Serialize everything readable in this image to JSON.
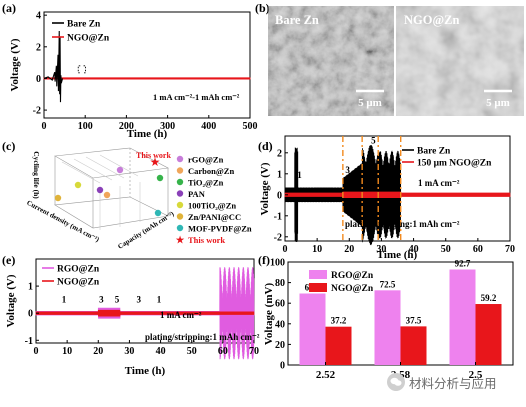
{
  "figure": {
    "watermark": "材料分析与应用",
    "panels": {
      "a": {
        "label": "(a)",
        "chart_data": {
          "type": "line",
          "xlabel": "Time (h)",
          "ylabel": "Voltage (V)",
          "xlim": [
            0,
            500
          ],
          "ylim": [
            -2.5,
            4.2
          ],
          "xticks": [
            0,
            100,
            200,
            300,
            400,
            500
          ],
          "yticks": [
            -2,
            0,
            2,
            4
          ],
          "annotation": "1 mA cm⁻²-1 mAh cm⁻²",
          "legend": "top-left",
          "series": [
            {
              "name": "Bare Zn",
              "color": "#000000",
              "x": [
                0,
                10,
                20,
                26,
                27,
                30,
                31,
                34,
                35,
                37,
                38,
                39,
                40,
                41,
                42,
                45
              ],
              "y": [
                0,
                0.1,
                -0.1,
                0.4,
                -0.2,
                0.8,
                -0.5,
                1.5,
                -0.8,
                3.0,
                -1.0,
                2.6,
                -1.5,
                0.2,
                -0.3,
                0
              ]
            },
            {
              "name": "NGO@Zn",
              "color": "#e8161b",
              "x": [
                0,
                100,
                200,
                300,
                400,
                500
              ],
              "y": [
                0,
                0,
                0,
                0,
                0,
                0
              ],
              "amplitude": 0.06
            }
          ]
        }
      },
      "b": {
        "label": "(b)",
        "left_title": "Bare Zn",
        "right_title": "NGO@Zn",
        "left_scale": "5 μm",
        "right_scale": "5 μm"
      },
      "c": {
        "label": "(c)",
        "chart_data": {
          "type": "scatter",
          "projection": "3d",
          "xlabel": "Current density (mA cm⁻²)",
          "ylabel": "Capacity (mAh cm⁻²)",
          "zlabel": "Cycling life (h)",
          "annotation": "This work",
          "legend": "right",
          "points": [
            {
              "name": "rGO@Zn",
              "color": "#c77dd9",
              "shape": "circle"
            },
            {
              "name": "Carbon@Zn",
              "color": "#f0a65a",
              "shape": "circle"
            },
            {
              "name": "TiO₂@Zn",
              "color": "#36b34a",
              "shape": "circle"
            },
            {
              "name": "PAN",
              "color": "#8a40b8",
              "shape": "circle"
            },
            {
              "name": "100TiO₂@Zn",
              "color": "#d7d93a",
              "shape": "circle"
            },
            {
              "name": "Zn/PANI@CC",
              "color": "#e0b33a",
              "shape": "circle"
            },
            {
              "name": "MOF-PVDF@Zn",
              "color": "#2fb7b5",
              "shape": "circle"
            },
            {
              "name": "This work",
              "color": "#e8161b",
              "shape": "star"
            }
          ]
        }
      },
      "d": {
        "label": "(d)",
        "chart_data": {
          "type": "line",
          "xlabel": "Time (h)",
          "ylabel": "Voltage (V)",
          "xlim": [
            0,
            70
          ],
          "ylim": [
            -2.2,
            2.8
          ],
          "xticks": [
            0,
            10,
            20,
            30,
            40,
            50,
            60,
            70
          ],
          "yticks": [
            -2,
            -1,
            0,
            1,
            2
          ],
          "annotations": [
            "1 mA cm⁻²",
            "plating/stripping:1 mAh cm⁻²"
          ],
          "stage_labels": [
            {
              "text": "1",
              "x": 4.5
            },
            {
              "text": "3",
              "x": 19.5
            },
            {
              "text": "5",
              "x": 27.5
            },
            {
              "text": "3",
              "x": 35.0
            }
          ],
          "dashed_lines_x": [
            18,
            24,
            29,
            36
          ],
          "legend": "top-right",
          "series": [
            {
              "name": "Bare Zn",
              "color": "#000000"
            },
            {
              "name": "150 μm NGO@Zn",
              "color": "#e8161b"
            }
          ]
        }
      },
      "e": {
        "label": "(e)",
        "chart_data": {
          "type": "line",
          "xlabel": "Time (h)",
          "ylabel": "Voltage (V)",
          "xlim": [
            0,
            70
          ],
          "ylim": [
            -1.1,
            2.0
          ],
          "xticks": [
            0,
            10,
            20,
            30,
            40,
            50,
            60,
            70
          ],
          "yticks": [
            -1,
            0,
            1
          ],
          "annotations": [
            "1 mA cm⁻²",
            "plating/stripping:1 mAh cm⁻²"
          ],
          "stage_labels": [
            {
              "text": "1",
              "x": 9
            },
            {
              "text": "3",
              "x": 21
            },
            {
              "text": "5",
              "x": 26
            },
            {
              "text": "3",
              "x": 33
            },
            {
              "text": "1",
              "x": 39.5
            }
          ],
          "legend": "top-left",
          "series": [
            {
              "name": "RGO@Zn",
              "color": "#e05ce0"
            },
            {
              "name": "NGO@Zn",
              "color": "#e8161b"
            }
          ]
        }
      },
      "f": {
        "label": "(f)",
        "chart_data": {
          "type": "bar",
          "ylabel": "Voltage (mV)",
          "ylim": [
            0,
            100
          ],
          "yticks": [
            0,
            20,
            40,
            60,
            80,
            100
          ],
          "categories": [
            "2.52",
            "2.58",
            "2.5"
          ],
          "legend": "top-left",
          "series": [
            {
              "name": "RGO@Zn",
              "color": "#ee82ee",
              "values": [
                69.4,
                72.5,
                92.7
              ]
            },
            {
              "name": "NGO@Zn",
              "color": "#e8161b",
              "values": [
                37.2,
                37.5,
                59.2
              ]
            }
          ]
        }
      }
    }
  }
}
